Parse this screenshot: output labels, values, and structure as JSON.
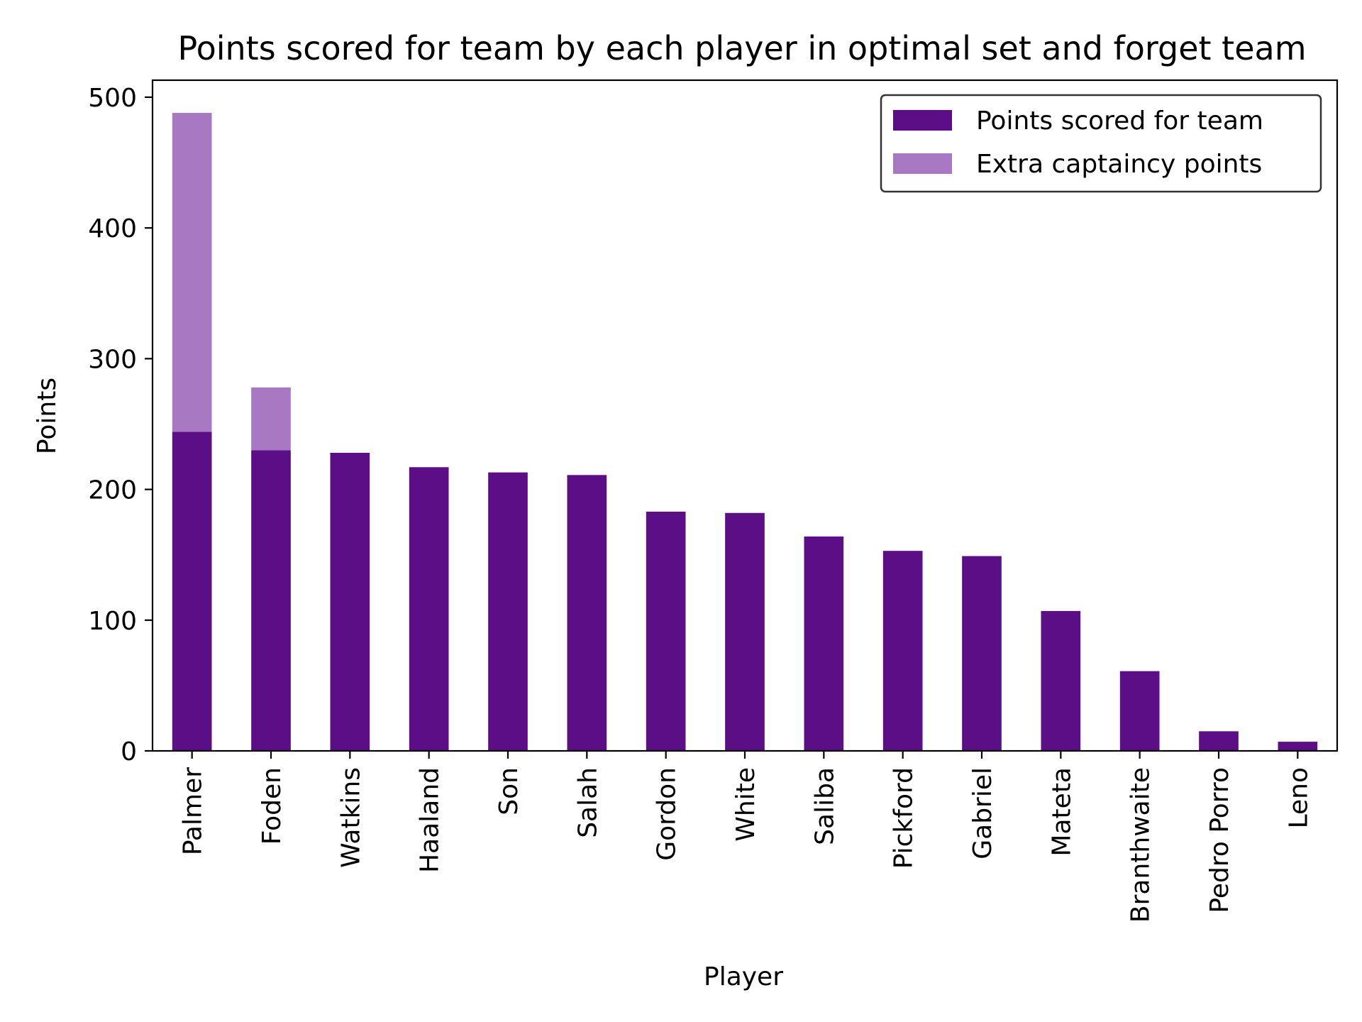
{
  "chart_data": {
    "type": "bar",
    "stacked": true,
    "title": "Points scored for team by each player in optimal set and forget team",
    "xlabel": "Player",
    "ylabel": "Points",
    "ylim": [
      0,
      513
    ],
    "yticks": [
      0,
      100,
      200,
      300,
      400,
      500
    ],
    "categories": [
      "Palmer",
      "Foden",
      "Watkins",
      "Haaland",
      "Son",
      "Salah",
      "Gordon",
      "White",
      "Saliba",
      "Pickford",
      "Gabriel",
      "Mateta",
      "Branthwaite",
      "Pedro Porro",
      "Leno"
    ],
    "series": [
      {
        "name": "Points scored for team",
        "color": "#5c0e87",
        "values": [
          244,
          230,
          228,
          217,
          213,
          211,
          183,
          182,
          164,
          153,
          149,
          107,
          61,
          15,
          7
        ]
      },
      {
        "name": "Extra captaincy points",
        "color": "#a878c3",
        "values": [
          244,
          48,
          0,
          0,
          0,
          0,
          0,
          0,
          0,
          0,
          0,
          0,
          0,
          0,
          0
        ]
      }
    ],
    "legend": "top-right",
    "grid": false
  }
}
